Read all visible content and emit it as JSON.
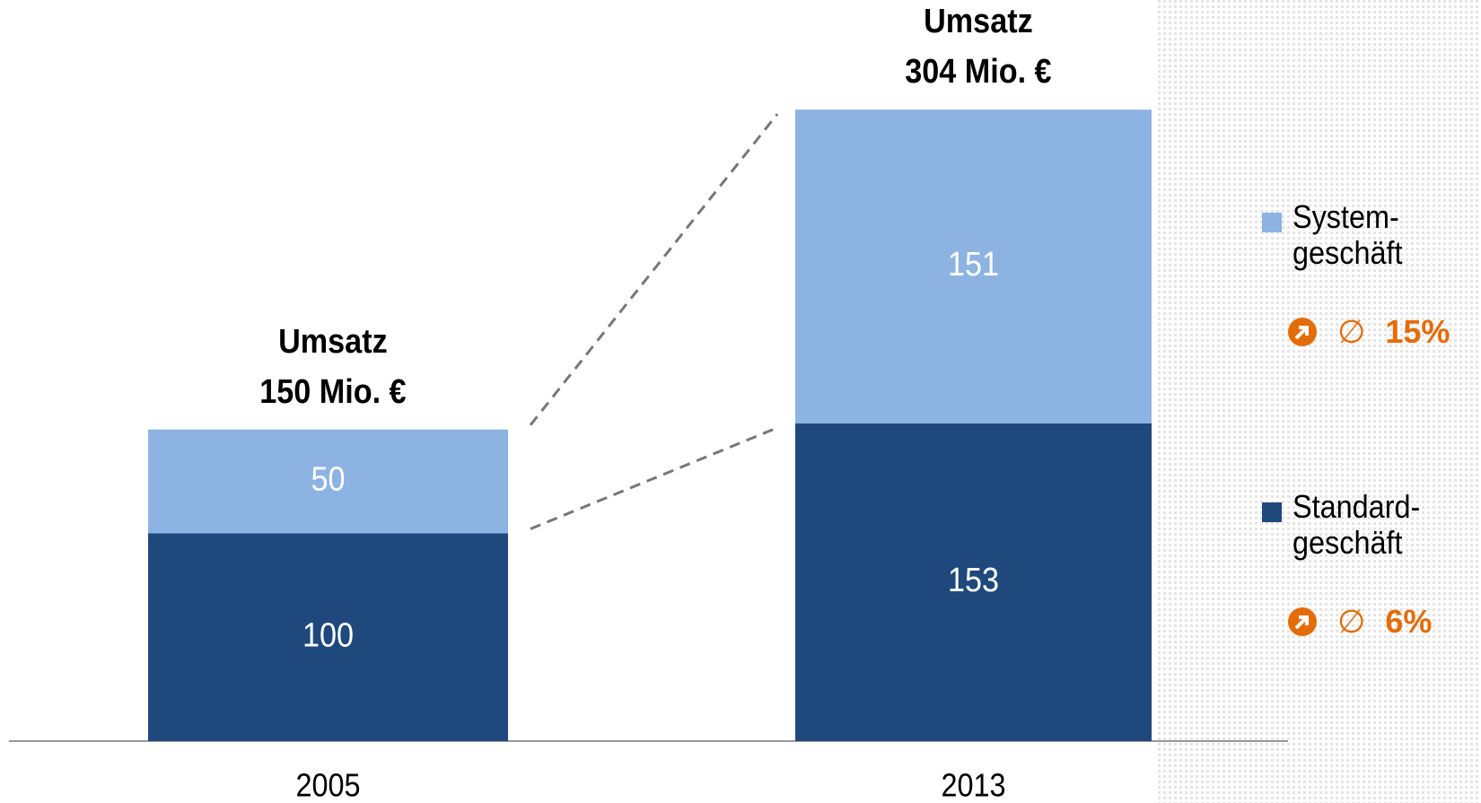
{
  "chart_data": {
    "type": "stacked_bar",
    "categories": [
      "2005",
      "2013"
    ],
    "series": [
      {
        "name": "Standard-\ngeschäft",
        "color": "#1f497d",
        "values": [
          100,
          153
        ],
        "growth_prefix": "∅",
        "growth_rate": 6,
        "growth_label": "6%"
      },
      {
        "name": "System-\ngeschäft",
        "color": "#8db3e2",
        "values": [
          50,
          151
        ],
        "growth_prefix": "∅",
        "growth_rate": 15,
        "growth_label": "15%"
      }
    ],
    "total_label": "Umsatz",
    "totals": [
      150,
      304
    ],
    "total_value_labels": [
      "150 Mio. €",
      "304 Mio. €"
    ],
    "ylim": [
      0,
      330
    ],
    "growth_color": "#e36c09"
  }
}
